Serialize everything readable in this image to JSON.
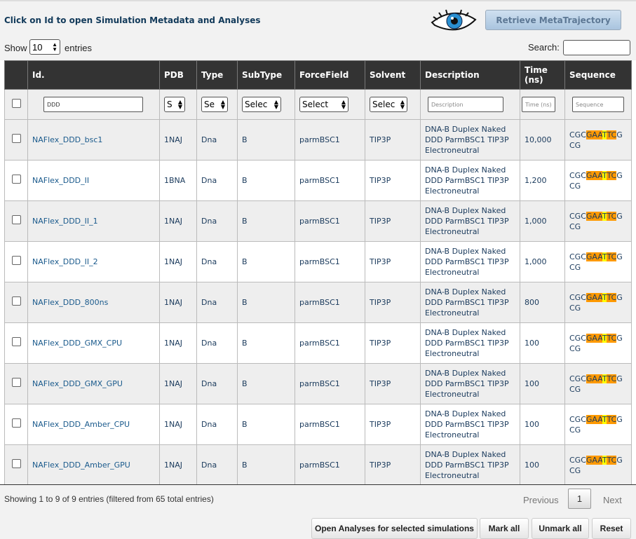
{
  "header": {
    "instruction": "Click on Id to open Simulation Metadata and Analyses",
    "retrieve_button": "Retrieve MetaTrajectory"
  },
  "controls": {
    "show_label": "Show",
    "entries_value": "10",
    "entries_label": "entries",
    "search_label": "Search:"
  },
  "table": {
    "columns": [
      "Id.",
      "PDB",
      "Type",
      "SubType",
      "ForceField",
      "Solvent",
      "Description",
      "Time (ns)",
      "Sequence"
    ],
    "filters": {
      "id": "DDD",
      "pdb": "S",
      "type": "Se",
      "subtype": "Selec",
      "forcefield": "Select",
      "solvent": "Selec",
      "description": "Description",
      "time": "Time (ns)",
      "sequence": "Sequence"
    },
    "rows": [
      {
        "id": "NAFlex_DDD_bsc1",
        "pdb": "1NAJ",
        "type": "Dna",
        "subtype": "B",
        "forcefield": "parmBSC1",
        "solvent": "TIP3P",
        "description": "DNA-B Duplex Naked DDD ParmBSC1 TIP3P Electroneutral",
        "time": "10,000",
        "sequence": [
          "CGC",
          "GA",
          "A",
          "T",
          "TC",
          "GCG"
        ]
      },
      {
        "id": "NAFlex_DDD_II",
        "pdb": "1BNA",
        "type": "Dna",
        "subtype": "B",
        "forcefield": "parmBSC1",
        "solvent": "TIP3P",
        "description": "DNA-B Duplex Naked DDD ParmBSC1 TIP3P Electroneutral",
        "time": "1,200",
        "sequence": [
          "CGC",
          "GA",
          "A",
          "T",
          "TC",
          "GCG"
        ]
      },
      {
        "id": "NAFlex_DDD_II_1",
        "pdb": "1NAJ",
        "type": "Dna",
        "subtype": "B",
        "forcefield": "parmBSC1",
        "solvent": "TIP3P",
        "description": "DNA-B Duplex Naked DDD ParmBSC1 TIP3P Electroneutral",
        "time": "1,000",
        "sequence": [
          "CGC",
          "GA",
          "A",
          "T",
          "TC",
          "GCG"
        ]
      },
      {
        "id": "NAFlex_DDD_II_2",
        "pdb": "1NAJ",
        "type": "Dna",
        "subtype": "B",
        "forcefield": "parmBSC1",
        "solvent": "TIP3P",
        "description": "DNA-B Duplex Naked DDD ParmBSC1 TIP3P Electroneutral",
        "time": "1,000",
        "sequence": [
          "CGC",
          "GA",
          "A",
          "T",
          "TC",
          "GCG"
        ]
      },
      {
        "id": "NAFlex_DDD_800ns",
        "pdb": "1NAJ",
        "type": "Dna",
        "subtype": "B",
        "forcefield": "parmBSC1",
        "solvent": "TIP3P",
        "description": "DNA-B Duplex Naked DDD ParmBSC1 TIP3P Electroneutral",
        "time": "800",
        "sequence": [
          "CGC",
          "GA",
          "A",
          "T",
          "TC",
          "GCG"
        ]
      },
      {
        "id": "NAFlex_DDD_GMX_CPU",
        "pdb": "1NAJ",
        "type": "Dna",
        "subtype": "B",
        "forcefield": "parmBSC1",
        "solvent": "TIP3P",
        "description": "DNA-B Duplex Naked DDD ParmBSC1 TIP3P Electroneutral",
        "time": "100",
        "sequence": [
          "CGC",
          "GA",
          "A",
          "T",
          "TC",
          "GCG"
        ]
      },
      {
        "id": "NAFlex_DDD_GMX_GPU",
        "pdb": "1NAJ",
        "type": "Dna",
        "subtype": "B",
        "forcefield": "parmBSC1",
        "solvent": "TIP3P",
        "description": "DNA-B Duplex Naked DDD ParmBSC1 TIP3P Electroneutral",
        "time": "100",
        "sequence": [
          "CGC",
          "GA",
          "A",
          "T",
          "TC",
          "GCG"
        ]
      },
      {
        "id": "NAFlex_DDD_Amber_CPU",
        "pdb": "1NAJ",
        "type": "Dna",
        "subtype": "B",
        "forcefield": "parmBSC1",
        "solvent": "TIP3P",
        "description": "DNA-B Duplex Naked DDD ParmBSC1 TIP3P Electroneutral",
        "time": "100",
        "sequence": [
          "CGC",
          "GA",
          "A",
          "T",
          "TC",
          "GCG"
        ]
      },
      {
        "id": "NAFlex_DDD_Amber_GPU",
        "pdb": "1NAJ",
        "type": "Dna",
        "subtype": "B",
        "forcefield": "parmBSC1",
        "solvent": "TIP3P",
        "description": "DNA-B Duplex Naked DDD ParmBSC1 TIP3P Electroneutral",
        "time": "100",
        "sequence": [
          "CGC",
          "GA",
          "A",
          "T",
          "TC",
          "GCG"
        ]
      }
    ]
  },
  "footer": {
    "info": "Showing 1 to 9 of 9 entries (filtered from 65 total entries)",
    "previous": "Previous",
    "page": "1",
    "next": "Next",
    "buttons": [
      "Open Analyses for selected simulations",
      "Mark all",
      "Unmark all",
      "Reset"
    ]
  }
}
